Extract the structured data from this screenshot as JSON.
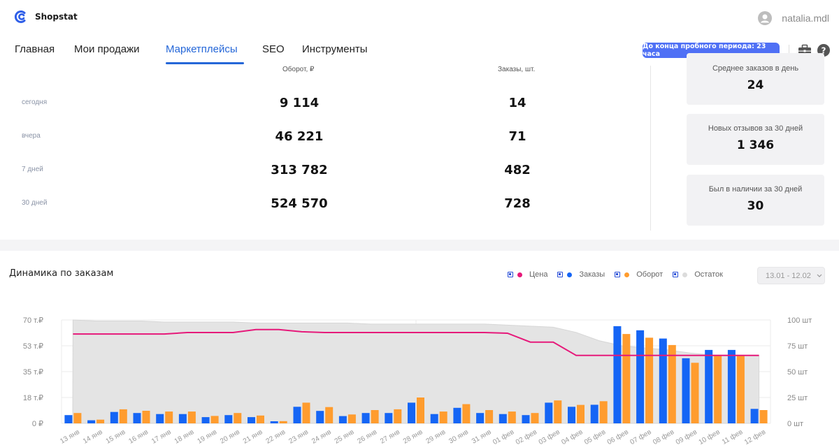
{
  "header": {
    "brand": "Shopstat",
    "username": "natalia.mdl"
  },
  "nav": {
    "items": [
      "Главная",
      "Мои продажи",
      "Маркетплейсы",
      "SEO",
      "Инструменты"
    ],
    "active": "Маркетплейсы",
    "trial_badge": "До конца пробного периода: 23 часа"
  },
  "stats": {
    "col_revenue": "Оборот, ₽",
    "col_orders": "Заказы, шт.",
    "rows": [
      {
        "label": "сегодня",
        "revenue": "9 114",
        "orders": "14"
      },
      {
        "label": "вчера",
        "revenue": "46 221",
        "orders": "71"
      },
      {
        "label": "7 дней",
        "revenue": "313 782",
        "orders": "482"
      },
      {
        "label": "30 дней",
        "revenue": "524 570",
        "orders": "728"
      }
    ]
  },
  "cards": [
    {
      "title": "Среднее заказов в день",
      "value": "24"
    },
    {
      "title": "Новых отзывов за 30 дней",
      "value": "1 346"
    },
    {
      "title": "Был в наличии за 30 дней",
      "value": "30"
    }
  ],
  "section": {
    "title": "Динамика по заказам",
    "legend": [
      {
        "label": "Цена",
        "color": "#e6197a"
      },
      {
        "label": "Заказы",
        "color": "#1565f5"
      },
      {
        "label": "Оборот",
        "color": "#ff9c2e"
      },
      {
        "label": "Остаток",
        "color": "#dcdcdc"
      }
    ],
    "date_range": "13.01 - 12.02"
  },
  "chart_data": {
    "type": "bar",
    "categories": [
      "13 янв",
      "14 янв",
      "15 янв",
      "16 янв",
      "17 янв",
      "18 янв",
      "19 янв",
      "20 янв",
      "21 янв",
      "22 янв",
      "23 янв",
      "24 янв",
      "25 янв",
      "26 янв",
      "27 янв",
      "28 янв",
      "29 янв",
      "30 янв",
      "31 янв",
      "01 фев",
      "02 фев",
      "03 фев",
      "04 фев",
      "05 фев",
      "06 фев",
      "07 фев",
      "08 фев",
      "09 фев",
      "10 фев",
      "11 фев",
      "12 фев"
    ],
    "yleft_ticks": [
      "0 ₽",
      "18 т.₽",
      "35 т.₽",
      "53 т.₽",
      "70 т.₽"
    ],
    "yright_ticks": [
      "0 шт",
      "25 шт",
      "50 шт",
      "75 шт",
      "100 шт"
    ],
    "yleft_lim": [
      0,
      70000
    ],
    "yright_lim": [
      0,
      100
    ],
    "series": [
      {
        "name": "Заказы",
        "axis": "right",
        "values": [
          8,
          3,
          11,
          10,
          9,
          9,
          6,
          8,
          6,
          2,
          16,
          12,
          7,
          10,
          10,
          20,
          9,
          15,
          10,
          9,
          8,
          20,
          16,
          18,
          94,
          90,
          82,
          63,
          71,
          71,
          14
        ]
      },
      {
        "name": "Оборот",
        "axis": "left",
        "values": [
          7000,
          2500,
          9500,
          8500,
          8000,
          8000,
          5000,
          7000,
          5300,
          1500,
          14000,
          11000,
          6000,
          9000,
          9500,
          17500,
          8000,
          13000,
          9000,
          8000,
          7000,
          15500,
          12500,
          15000,
          60500,
          58000,
          53000,
          41000,
          45800,
          46000,
          9000
        ]
      },
      {
        "name": "Цена",
        "axis": "left",
        "values": [
          60500,
          60500,
          60500,
          60500,
          60500,
          61500,
          61500,
          61500,
          63500,
          63500,
          62000,
          61500,
          61500,
          61500,
          61500,
          61500,
          61500,
          61500,
          61500,
          61000,
          55000,
          55000,
          46000,
          46000,
          46000,
          46000,
          46000,
          46000,
          46000,
          46000,
          46000
        ]
      },
      {
        "name": "Остаток",
        "axis": "right",
        "values": [
          100,
          99,
          99,
          99,
          98,
          98,
          98,
          98,
          97,
          97,
          97,
          97,
          97,
          96,
          96,
          96,
          96,
          96,
          96,
          95,
          94,
          93,
          88,
          80,
          75,
          73,
          71,
          68,
          66,
          66,
          65
        ]
      }
    ]
  }
}
